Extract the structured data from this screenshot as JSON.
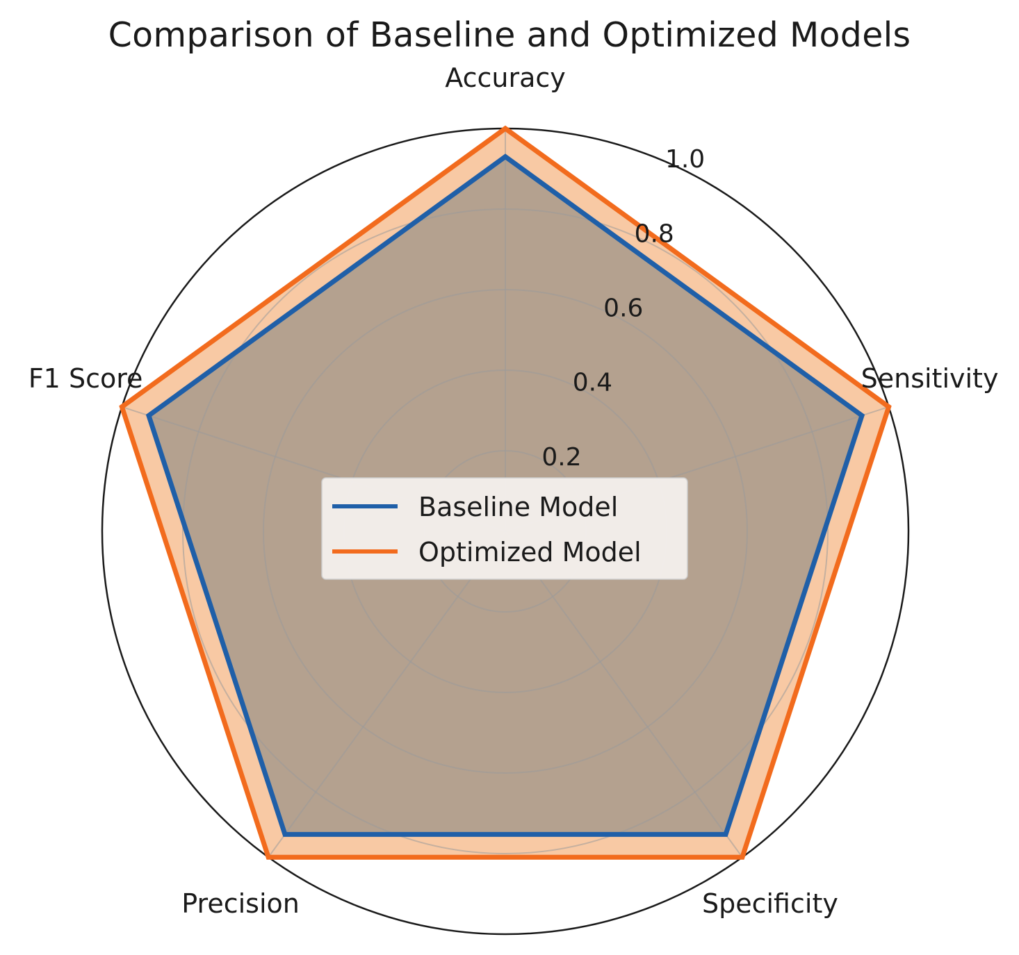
{
  "chart_data": {
    "type": "radar",
    "title": "Comparison of Baseline and Optimized Models",
    "axes": [
      "Accuracy",
      "Sensitivity",
      "Specificity",
      "Precision",
      "F1 Score"
    ],
    "r_ticks": [
      0.2,
      0.4,
      0.6,
      0.8,
      1.0
    ],
    "r_tick_labels": [
      "0.2",
      "0.4",
      "0.6",
      "0.8",
      "1.0"
    ],
    "rlim": [
      0,
      1.0
    ],
    "grid": true,
    "legend_position": "center",
    "series": [
      {
        "name": "Baseline Model",
        "values": [
          0.93,
          0.93,
          0.93,
          0.93,
          0.93
        ],
        "line_color": "#1f5fa8",
        "fill_color": "#a89a8c"
      },
      {
        "name": "Optimized Model",
        "values": [
          1.0,
          1.0,
          1.0,
          1.0,
          1.0
        ],
        "line_color": "#f26b1d",
        "fill_color": "#f8c9a4"
      }
    ]
  }
}
